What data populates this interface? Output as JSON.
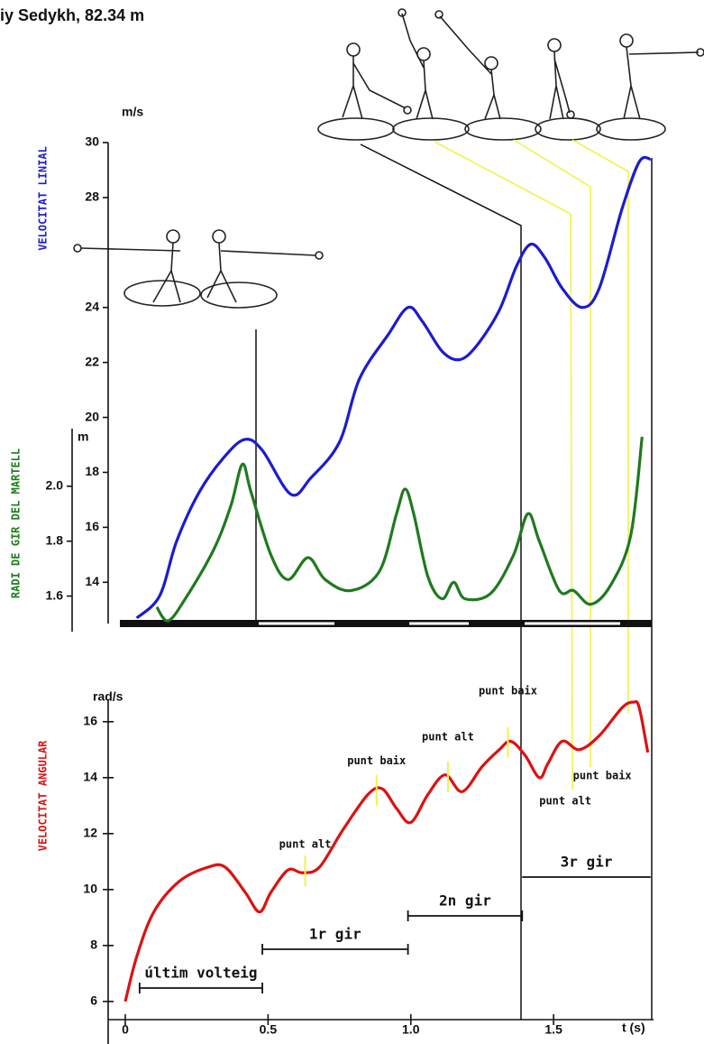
{
  "title": "iy Sedykh, 82.34 m",
  "chart_data": [
    {
      "type": "line",
      "xlim": [
        -0.06,
        1.85
      ],
      "ylim": [
        12.5,
        30
      ],
      "yticks": [
        14,
        16,
        18,
        20,
        22,
        24,
        28,
        30
      ],
      "y_label": "m/s",
      "y_title": "VELOCITAT LINIAL",
      "y2lim": [
        1.5,
        2.21
      ],
      "y2ticks": [
        1.6,
        1.8,
        {
          "value": 2,
          "label": "2.0"
        }
      ],
      "y2_label": "m",
      "y2_title": "RADI DE GIR DEL MARTELL",
      "series": [
        {
          "color": "#1c1ccf",
          "x": [
            0.04,
            0.12,
            0.18,
            0.26,
            0.35,
            0.42,
            0.48,
            0.58,
            0.65,
            0.75,
            0.82,
            0.92,
            0.99,
            1.04,
            1.11,
            1.17,
            1.23,
            1.31,
            1.37,
            1.42,
            1.47,
            1.53,
            1.6,
            1.66,
            1.74,
            1.8,
            1.84
          ],
          "values": [
            12.7,
            13.5,
            15.5,
            17.3,
            18.6,
            19.2,
            18.8,
            17.2,
            17.8,
            19.1,
            21.4,
            23.0,
            24.0,
            23.5,
            22.4,
            22.1,
            22.6,
            23.9,
            25.5,
            26.3,
            25.8,
            24.7,
            24.0,
            24.7,
            27.6,
            29.3,
            29.4
          ]
        },
        {
          "color": "#1f7a1f",
          "axis": "y2",
          "x": [
            0.11,
            0.15,
            0.21,
            0.31,
            0.37,
            0.41,
            0.44,
            0.51,
            0.57,
            0.64,
            0.7,
            0.79,
            0.89,
            0.95,
            0.98,
            1.01,
            1.06,
            1.11,
            1.15,
            1.19,
            1.28,
            1.36,
            1.41,
            1.45,
            1.52,
            1.57,
            1.63,
            1.7,
            1.77,
            1.81
          ],
          "values": [
            1.56,
            1.51,
            1.59,
            1.77,
            1.93,
            2.08,
            1.98,
            1.75,
            1.66,
            1.74,
            1.66,
            1.62,
            1.69,
            1.9,
            1.99,
            1.9,
            1.67,
            1.59,
            1.65,
            1.59,
            1.61,
            1.75,
            1.9,
            1.8,
            1.62,
            1.62,
            1.57,
            1.64,
            1.82,
            2.18
          ]
        }
      ]
    },
    {
      "type": "line",
      "xlim": [
        -0.06,
        1.85
      ],
      "xticks": [
        0,
        0.5,
        {
          "value": 1,
          "label": "1.0"
        },
        1.5
      ],
      "x_label": "t (s)",
      "ylim": [
        5.35,
        16.8
      ],
      "yticks": [
        6,
        8,
        10,
        12,
        14,
        16
      ],
      "y_label": "rad/s",
      "y_title": "VELOCITAT ANGULAR",
      "color": "#dd1111",
      "x": [
        0.0,
        0.04,
        0.1,
        0.19,
        0.29,
        0.35,
        0.42,
        0.47,
        0.51,
        0.57,
        0.62,
        0.68,
        0.76,
        0.85,
        0.9,
        0.95,
        1.0,
        1.06,
        1.12,
        1.18,
        1.25,
        1.31,
        1.35,
        1.4,
        1.45,
        1.48,
        1.53,
        1.59,
        1.66,
        1.74,
        1.78,
        1.8,
        1.83
      ],
      "values": [
        6.0,
        7.6,
        9.2,
        10.3,
        10.8,
        10.8,
        9.9,
        9.2,
        9.9,
        10.7,
        10.6,
        10.8,
        12.1,
        13.4,
        13.6,
        12.9,
        12.4,
        13.4,
        14.1,
        13.5,
        14.4,
        15.0,
        15.3,
        14.8,
        14.0,
        14.5,
        15.3,
        15.0,
        15.5,
        16.5,
        16.7,
        16.5,
        14.9
      ],
      "annotations": [
        {
          "text": "punt alt",
          "x": 0.63
        },
        {
          "text": "punt baix",
          "x": 0.88
        },
        {
          "text": "punt alt",
          "x": 1.13
        },
        {
          "text": "punt baix",
          "x": 1.34
        },
        {
          "text": "punt alt",
          "x": 1.56
        },
        {
          "text": "punt baix",
          "x": 1.62
        }
      ],
      "phases": [
        {
          "label": "últim volteig",
          "start": 0.05,
          "end": 0.48
        },
        {
          "label": "1r gir",
          "start": 0.48,
          "end": 0.99
        },
        {
          "label": "2n gir",
          "start": 0.99,
          "end": 1.39
        },
        {
          "label": "3r gir",
          "start": 1.39,
          "end": 1.84
        }
      ]
    }
  ]
}
